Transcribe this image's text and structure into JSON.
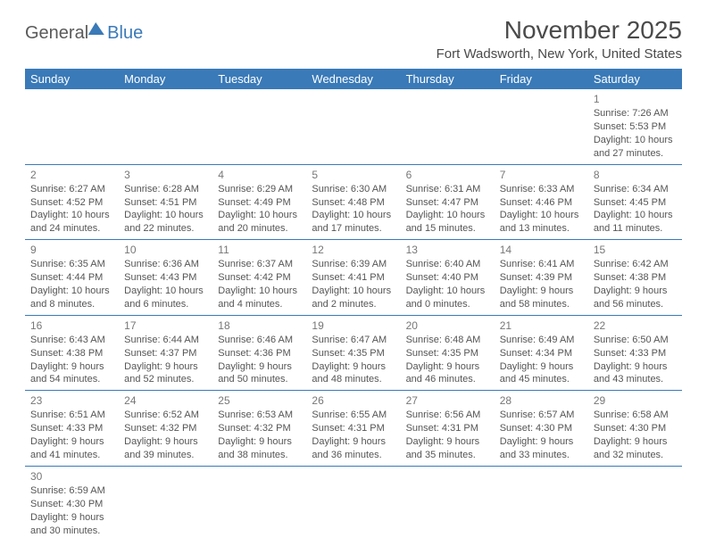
{
  "logo": {
    "general": "General",
    "blue": "Blue"
  },
  "title": "November 2025",
  "location": "Fort Wadsworth, New York, United States",
  "day_headers": [
    "Sunday",
    "Monday",
    "Tuesday",
    "Wednesday",
    "Thursday",
    "Friday",
    "Saturday"
  ],
  "colors": {
    "header_bg": "#3a7ab8",
    "header_fg": "#ffffff",
    "text": "#555555",
    "border": "#3a7ab8"
  },
  "weeks": [
    [
      null,
      null,
      null,
      null,
      null,
      null,
      {
        "n": "1",
        "sunrise": "Sunrise: 7:26 AM",
        "sunset": "Sunset: 5:53 PM",
        "daylight": "Daylight: 10 hours and 27 minutes."
      }
    ],
    [
      {
        "n": "2",
        "sunrise": "Sunrise: 6:27 AM",
        "sunset": "Sunset: 4:52 PM",
        "daylight": "Daylight: 10 hours and 24 minutes."
      },
      {
        "n": "3",
        "sunrise": "Sunrise: 6:28 AM",
        "sunset": "Sunset: 4:51 PM",
        "daylight": "Daylight: 10 hours and 22 minutes."
      },
      {
        "n": "4",
        "sunrise": "Sunrise: 6:29 AM",
        "sunset": "Sunset: 4:49 PM",
        "daylight": "Daylight: 10 hours and 20 minutes."
      },
      {
        "n": "5",
        "sunrise": "Sunrise: 6:30 AM",
        "sunset": "Sunset: 4:48 PM",
        "daylight": "Daylight: 10 hours and 17 minutes."
      },
      {
        "n": "6",
        "sunrise": "Sunrise: 6:31 AM",
        "sunset": "Sunset: 4:47 PM",
        "daylight": "Daylight: 10 hours and 15 minutes."
      },
      {
        "n": "7",
        "sunrise": "Sunrise: 6:33 AM",
        "sunset": "Sunset: 4:46 PM",
        "daylight": "Daylight: 10 hours and 13 minutes."
      },
      {
        "n": "8",
        "sunrise": "Sunrise: 6:34 AM",
        "sunset": "Sunset: 4:45 PM",
        "daylight": "Daylight: 10 hours and 11 minutes."
      }
    ],
    [
      {
        "n": "9",
        "sunrise": "Sunrise: 6:35 AM",
        "sunset": "Sunset: 4:44 PM",
        "daylight": "Daylight: 10 hours and 8 minutes."
      },
      {
        "n": "10",
        "sunrise": "Sunrise: 6:36 AM",
        "sunset": "Sunset: 4:43 PM",
        "daylight": "Daylight: 10 hours and 6 minutes."
      },
      {
        "n": "11",
        "sunrise": "Sunrise: 6:37 AM",
        "sunset": "Sunset: 4:42 PM",
        "daylight": "Daylight: 10 hours and 4 minutes."
      },
      {
        "n": "12",
        "sunrise": "Sunrise: 6:39 AM",
        "sunset": "Sunset: 4:41 PM",
        "daylight": "Daylight: 10 hours and 2 minutes."
      },
      {
        "n": "13",
        "sunrise": "Sunrise: 6:40 AM",
        "sunset": "Sunset: 4:40 PM",
        "daylight": "Daylight: 10 hours and 0 minutes."
      },
      {
        "n": "14",
        "sunrise": "Sunrise: 6:41 AM",
        "sunset": "Sunset: 4:39 PM",
        "daylight": "Daylight: 9 hours and 58 minutes."
      },
      {
        "n": "15",
        "sunrise": "Sunrise: 6:42 AM",
        "sunset": "Sunset: 4:38 PM",
        "daylight": "Daylight: 9 hours and 56 minutes."
      }
    ],
    [
      {
        "n": "16",
        "sunrise": "Sunrise: 6:43 AM",
        "sunset": "Sunset: 4:38 PM",
        "daylight": "Daylight: 9 hours and 54 minutes."
      },
      {
        "n": "17",
        "sunrise": "Sunrise: 6:44 AM",
        "sunset": "Sunset: 4:37 PM",
        "daylight": "Daylight: 9 hours and 52 minutes."
      },
      {
        "n": "18",
        "sunrise": "Sunrise: 6:46 AM",
        "sunset": "Sunset: 4:36 PM",
        "daylight": "Daylight: 9 hours and 50 minutes."
      },
      {
        "n": "19",
        "sunrise": "Sunrise: 6:47 AM",
        "sunset": "Sunset: 4:35 PM",
        "daylight": "Daylight: 9 hours and 48 minutes."
      },
      {
        "n": "20",
        "sunrise": "Sunrise: 6:48 AM",
        "sunset": "Sunset: 4:35 PM",
        "daylight": "Daylight: 9 hours and 46 minutes."
      },
      {
        "n": "21",
        "sunrise": "Sunrise: 6:49 AM",
        "sunset": "Sunset: 4:34 PM",
        "daylight": "Daylight: 9 hours and 45 minutes."
      },
      {
        "n": "22",
        "sunrise": "Sunrise: 6:50 AM",
        "sunset": "Sunset: 4:33 PM",
        "daylight": "Daylight: 9 hours and 43 minutes."
      }
    ],
    [
      {
        "n": "23",
        "sunrise": "Sunrise: 6:51 AM",
        "sunset": "Sunset: 4:33 PM",
        "daylight": "Daylight: 9 hours and 41 minutes."
      },
      {
        "n": "24",
        "sunrise": "Sunrise: 6:52 AM",
        "sunset": "Sunset: 4:32 PM",
        "daylight": "Daylight: 9 hours and 39 minutes."
      },
      {
        "n": "25",
        "sunrise": "Sunrise: 6:53 AM",
        "sunset": "Sunset: 4:32 PM",
        "daylight": "Daylight: 9 hours and 38 minutes."
      },
      {
        "n": "26",
        "sunrise": "Sunrise: 6:55 AM",
        "sunset": "Sunset: 4:31 PM",
        "daylight": "Daylight: 9 hours and 36 minutes."
      },
      {
        "n": "27",
        "sunrise": "Sunrise: 6:56 AM",
        "sunset": "Sunset: 4:31 PM",
        "daylight": "Daylight: 9 hours and 35 minutes."
      },
      {
        "n": "28",
        "sunrise": "Sunrise: 6:57 AM",
        "sunset": "Sunset: 4:30 PM",
        "daylight": "Daylight: 9 hours and 33 minutes."
      },
      {
        "n": "29",
        "sunrise": "Sunrise: 6:58 AM",
        "sunset": "Sunset: 4:30 PM",
        "daylight": "Daylight: 9 hours and 32 minutes."
      }
    ],
    [
      {
        "n": "30",
        "sunrise": "Sunrise: 6:59 AM",
        "sunset": "Sunset: 4:30 PM",
        "daylight": "Daylight: 9 hours and 30 minutes."
      },
      null,
      null,
      null,
      null,
      null,
      null
    ]
  ]
}
